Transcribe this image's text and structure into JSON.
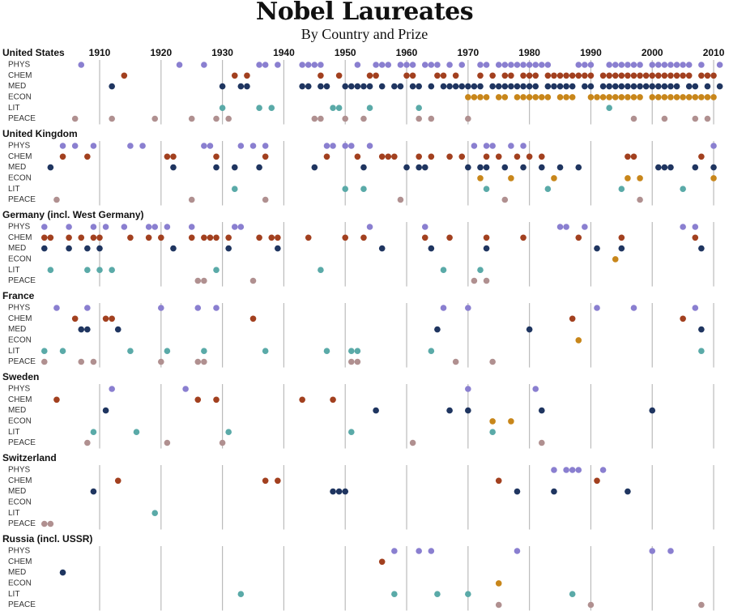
{
  "chart_data": {
    "type": "strip",
    "title": "Nobel Laureates",
    "subtitle": "By Country and Prize",
    "xlim": [
      1900,
      2012
    ],
    "xticks": [
      1910,
      1920,
      1930,
      1940,
      1950,
      1960,
      1970,
      1980,
      1990,
      2000,
      2010
    ],
    "grid": true,
    "groups": [
      {
        "name": "United States",
        "series": [
          {
            "name": "PHYS",
            "color": "#8a7fd0",
            "values": [
              1907,
              1923,
              1927,
              1936,
              1937,
              1939,
              1943,
              1944,
              1945,
              1946,
              1952,
              1955,
              1956,
              1957,
              1959,
              1960,
              1961,
              1963,
              1964,
              1965,
              1967,
              1969,
              1972,
              1973,
              1975,
              1976,
              1977,
              1978,
              1979,
              1980,
              1981,
              1982,
              1983,
              1988,
              1989,
              1990,
              1993,
              1994,
              1995,
              1996,
              1997,
              1998,
              2000,
              2001,
              2002,
              2003,
              2004,
              2005,
              2006,
              2008,
              2011
            ]
          },
          {
            "name": "CHEM",
            "color": "#a2401f",
            "values": [
              1914,
              1932,
              1934,
              1946,
              1949,
              1954,
              1955,
              1960,
              1961,
              1965,
              1966,
              1968,
              1972,
              1974,
              1976,
              1977,
              1979,
              1980,
              1981,
              1983,
              1984,
              1985,
              1986,
              1987,
              1988,
              1989,
              1990,
              1992,
              1993,
              1994,
              1995,
              1996,
              1997,
              1998,
              1999,
              2000,
              2001,
              2002,
              2003,
              2004,
              2005,
              2006,
              2008,
              2009,
              2010
            ]
          },
          {
            "name": "MED",
            "color": "#1f3560",
            "values": [
              1912,
              1930,
              1933,
              1934,
              1943,
              1944,
              1946,
              1947,
              1950,
              1951,
              1952,
              1953,
              1954,
              1956,
              1958,
              1959,
              1961,
              1962,
              1964,
              1966,
              1967,
              1968,
              1969,
              1970,
              1971,
              1972,
              1974,
              1975,
              1976,
              1977,
              1978,
              1979,
              1980,
              1981,
              1983,
              1984,
              1985,
              1986,
              1987,
              1989,
              1990,
              1992,
              1993,
              1994,
              1995,
              1996,
              1997,
              1998,
              1999,
              2000,
              2001,
              2002,
              2003,
              2004,
              2006,
              2007,
              2009,
              2011
            ]
          },
          {
            "name": "ECON",
            "color": "#c8861a",
            "values": [
              1970,
              1971,
              1972,
              1973,
              1975,
              1976,
              1978,
              1979,
              1980,
              1981,
              1982,
              1983,
              1985,
              1986,
              1987,
              1990,
              1991,
              1992,
              1993,
              1994,
              1995,
              1996,
              1997,
              1998,
              2000,
              2001,
              2002,
              2003,
              2004,
              2005,
              2006,
              2007,
              2008,
              2009,
              2010
            ]
          },
          {
            "name": "LIT",
            "color": "#5aaaa8",
            "values": [
              1930,
              1936,
              1938,
              1948,
              1949,
              1954,
              1962,
              1993
            ]
          },
          {
            "name": "PEACE",
            "color": "#b09090",
            "values": [
              1906,
              1912,
              1919,
              1925,
              1929,
              1931,
              1945,
              1946,
              1950,
              1953,
              1962,
              1964,
              1970,
              1997,
              2002,
              2007,
              2009
            ]
          }
        ]
      },
      {
        "name": "United Kingdom",
        "series": [
          {
            "name": "PHYS",
            "color": "#8a7fd0",
            "values": [
              1904,
              1906,
              1909,
              1915,
              1917,
              1927,
              1928,
              1933,
              1935,
              1937,
              1947,
              1948,
              1950,
              1951,
              1954,
              1971,
              1973,
              1974,
              1977,
              1979,
              2010
            ]
          },
          {
            "name": "CHEM",
            "color": "#a2401f",
            "values": [
              1904,
              1908,
              1921,
              1922,
              1929,
              1937,
              1947,
              1952,
              1956,
              1957,
              1958,
              1962,
              1964,
              1967,
              1969,
              1973,
              1975,
              1978,
              1980,
              1982,
              1996,
              1997,
              2008
            ]
          },
          {
            "name": "MED",
            "color": "#1f3560",
            "values": [
              1902,
              1922,
              1929,
              1932,
              1936,
              1945,
              1953,
              1960,
              1962,
              1963,
              1970,
              1972,
              1973,
              1976,
              1979,
              1982,
              1985,
              1988,
              2001,
              2002,
              2003,
              2007,
              2010
            ]
          },
          {
            "name": "ECON",
            "color": "#c8861a",
            "values": [
              1972,
              1977,
              1984,
              1996,
              1998,
              2010
            ]
          },
          {
            "name": "LIT",
            "color": "#5aaaa8",
            "values": [
              1932,
              1950,
              1953,
              1973,
              1983,
              1995,
              2005
            ]
          },
          {
            "name": "PEACE",
            "color": "#b09090",
            "values": [
              1903,
              1925,
              1937,
              1959,
              1976,
              1998
            ]
          }
        ]
      },
      {
        "name": "Germany (incl. West Germany)",
        "series": [
          {
            "name": "PHYS",
            "color": "#8a7fd0",
            "values": [
              1901,
              1905,
              1909,
              1911,
              1914,
              1918,
              1919,
              1921,
              1925,
              1932,
              1933,
              1954,
              1963,
              1985,
              1986,
              1989,
              2005,
              2007
            ]
          },
          {
            "name": "CHEM",
            "color": "#a2401f",
            "values": [
              1901,
              1902,
              1905,
              1907,
              1909,
              1910,
              1915,
              1918,
              1920,
              1925,
              1927,
              1928,
              1929,
              1931,
              1936,
              1938,
              1939,
              1944,
              1950,
              1953,
              1963,
              1967,
              1973,
              1979,
              1988,
              1995,
              2007
            ]
          },
          {
            "name": "MED",
            "color": "#1f3560",
            "values": [
              1901,
              1905,
              1908,
              1910,
              1922,
              1931,
              1939,
              1956,
              1964,
              1973,
              1991,
              1995,
              2008
            ]
          },
          {
            "name": "ECON",
            "color": "#c8861a",
            "values": [
              1994
            ]
          },
          {
            "name": "LIT",
            "color": "#5aaaa8",
            "values": [
              1902,
              1908,
              1910,
              1912,
              1929,
              1946,
              1966,
              1972
            ]
          },
          {
            "name": "PEACE",
            "color": "#b09090",
            "values": [
              1926,
              1927,
              1935,
              1971,
              1973
            ]
          }
        ]
      },
      {
        "name": "France",
        "series": [
          {
            "name": "PHYS",
            "color": "#8a7fd0",
            "values": [
              1903,
              1908,
              1920,
              1926,
              1929,
              1966,
              1970,
              1991,
              1997,
              2007
            ]
          },
          {
            "name": "CHEM",
            "color": "#a2401f",
            "values": [
              1906,
              1911,
              1912,
              1935,
              1987,
              2005
            ]
          },
          {
            "name": "MED",
            "color": "#1f3560",
            "values": [
              1907,
              1908,
              1913,
              1965,
              1980,
              2008
            ]
          },
          {
            "name": "ECON",
            "color": "#c8861a",
            "values": [
              1988
            ]
          },
          {
            "name": "LIT",
            "color": "#5aaaa8",
            "values": [
              1901,
              1904,
              1915,
              1921,
              1927,
              1937,
              1947,
              1951,
              1952,
              1964,
              2008
            ]
          },
          {
            "name": "PEACE",
            "color": "#b09090",
            "values": [
              1901,
              1907,
              1909,
              1920,
              1926,
              1927,
              1951,
              1952,
              1968,
              1974
            ]
          }
        ]
      },
      {
        "name": "Sweden",
        "series": [
          {
            "name": "PHYS",
            "color": "#8a7fd0",
            "values": [
              1912,
              1924,
              1970,
              1981
            ]
          },
          {
            "name": "CHEM",
            "color": "#a2401f",
            "values": [
              1903,
              1926,
              1929,
              1943,
              1948
            ]
          },
          {
            "name": "MED",
            "color": "#1f3560",
            "values": [
              1911,
              1955,
              1967,
              1970,
              1982,
              2000
            ]
          },
          {
            "name": "ECON",
            "color": "#c8861a",
            "values": [
              1974,
              1977
            ]
          },
          {
            "name": "LIT",
            "color": "#5aaaa8",
            "values": [
              1909,
              1916,
              1931,
              1951,
              1974
            ]
          },
          {
            "name": "PEACE",
            "color": "#b09090",
            "values": [
              1908,
              1921,
              1930,
              1961,
              1982
            ]
          }
        ]
      },
      {
        "name": "Switzerland",
        "series": [
          {
            "name": "PHYS",
            "color": "#8a7fd0",
            "values": [
              1984,
              1986,
              1987,
              1988,
              1992
            ]
          },
          {
            "name": "CHEM",
            "color": "#a2401f",
            "values": [
              1913,
              1937,
              1939,
              1975,
              1991
            ]
          },
          {
            "name": "MED",
            "color": "#1f3560",
            "values": [
              1909,
              1948,
              1949,
              1950,
              1978,
              1984,
              1996
            ]
          },
          {
            "name": "ECON",
            "color": "#c8861a",
            "values": []
          },
          {
            "name": "LIT",
            "color": "#5aaaa8",
            "values": [
              1919
            ]
          },
          {
            "name": "PEACE",
            "color": "#b09090",
            "values": [
              1901,
              1902
            ]
          }
        ]
      },
      {
        "name": "Russia (incl. USSR)",
        "series": [
          {
            "name": "PHYS",
            "color": "#8a7fd0",
            "values": [
              1958,
              1962,
              1964,
              1978,
              2000,
              2003
            ]
          },
          {
            "name": "CHEM",
            "color": "#a2401f",
            "values": [
              1956
            ]
          },
          {
            "name": "MED",
            "color": "#1f3560",
            "values": [
              1904
            ]
          },
          {
            "name": "ECON",
            "color": "#c8861a",
            "values": [
              1975
            ]
          },
          {
            "name": "LIT",
            "color": "#5aaaa8",
            "values": [
              1933,
              1958,
              1965,
              1970,
              1987
            ]
          },
          {
            "name": "PEACE",
            "color": "#b09090",
            "values": [
              1975,
              1990,
              2008
            ]
          }
        ]
      }
    ]
  }
}
